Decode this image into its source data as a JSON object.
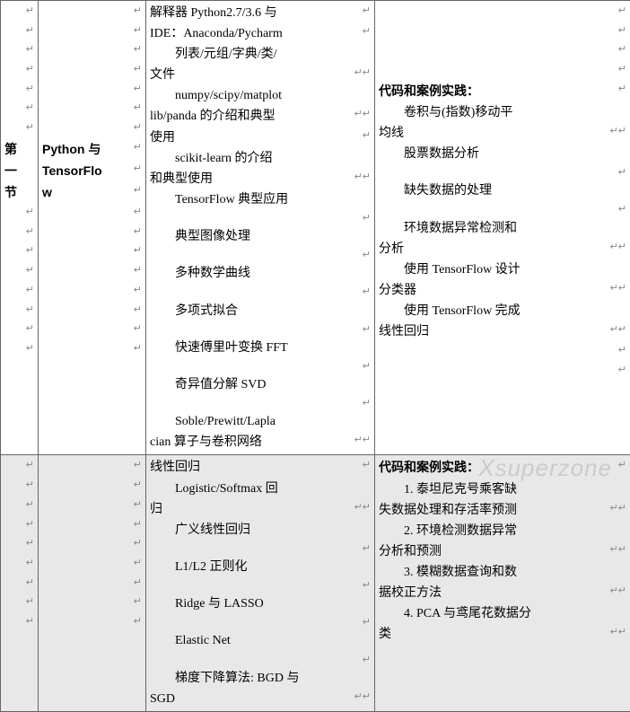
{
  "pmark": "↵",
  "row1": {
    "section_label": "第一节",
    "pad_marks_col0_before": 7,
    "pad_marks_col0_after": 8,
    "col1_pad_before": 7,
    "col1_line1": "Python 与",
    "col1_line2": "TensorFlo",
    "col1_line3": "w",
    "col1_pad_after": 8,
    "col2": [
      {
        "t": "解释器 Python2.7/3.6 与",
        "cls": ""
      },
      {
        "t": "IDE：Anaconda/Pycharm",
        "cls": ""
      },
      {
        "t": "列表/元组/字典/类/",
        "cls": "indent"
      },
      {
        "t": "文件",
        "cls": ""
      },
      {
        "t": "numpy/scipy/matplot",
        "cls": "indent"
      },
      {
        "t": "lib/panda 的介绍和典型",
        "cls": ""
      },
      {
        "t": "使用",
        "cls": ""
      },
      {
        "t": "scikit-learn 的介绍",
        "cls": "indent"
      },
      {
        "t": "和典型使用",
        "cls": ""
      },
      {
        "t": "TensorFlow 典型应用",
        "cls": "indent"
      },
      {
        "t": "典型图像处理",
        "cls": "indent"
      },
      {
        "t": "多种数学曲线",
        "cls": "indent"
      },
      {
        "t": "多项式拟合",
        "cls": "indent"
      },
      {
        "t": "快速傅里叶变换 FFT",
        "cls": "indent"
      },
      {
        "t": "奇异值分解 SVD",
        "cls": "indent"
      },
      {
        "t": "Soble/Prewitt/Lapla",
        "cls": "indent"
      },
      {
        "t": "cian 算子与卷积网络",
        "cls": ""
      }
    ],
    "col3_pad_before": 4,
    "col3": [
      {
        "t": "代码和案例实践：",
        "cls": "bold"
      },
      {
        "t": "卷积与(指数)移动平",
        "cls": "indent"
      },
      {
        "t": "均线",
        "cls": ""
      },
      {
        "t": "股票数据分析",
        "cls": "indent"
      },
      {
        "t": "缺失数据的处理",
        "cls": "indent"
      },
      {
        "t": "环境数据异常检测和",
        "cls": "indent"
      },
      {
        "t": "分析",
        "cls": ""
      },
      {
        "t": "使用 TensorFlow 设计",
        "cls": "indent"
      },
      {
        "t": "分类器",
        "cls": ""
      },
      {
        "t": "使用 TensorFlow 完成",
        "cls": "indent"
      },
      {
        "t": "线性回归",
        "cls": ""
      }
    ],
    "col3_pad_after": 2
  },
  "row2": {
    "col0_marks": 9,
    "col1_marks": 9,
    "col2": [
      {
        "t": "线性回归",
        "cls": ""
      },
      {
        "t": "Logistic/Softmax 回",
        "cls": "indent"
      },
      {
        "t": "归",
        "cls": ""
      },
      {
        "t": "广义线性回归",
        "cls": "indent"
      },
      {
        "t": "L1/L2 正则化",
        "cls": "indent"
      },
      {
        "t": "Ridge 与 LASSO",
        "cls": "indent"
      },
      {
        "t": "Elastic Net",
        "cls": "indent"
      },
      {
        "t": "梯度下降算法: BGD 与",
        "cls": "indent"
      },
      {
        "t": "SGD",
        "cls": ""
      }
    ],
    "col3": [
      {
        "t": "代码和案例实践：",
        "cls": "bold"
      },
      {
        "t": "1. 泰坦尼克号乘客缺",
        "cls": "indent"
      },
      {
        "t": "失数据处理和存活率预测",
        "cls": ""
      },
      {
        "t": "2. 环境检测数据异常",
        "cls": "indent"
      },
      {
        "t": "分析和预测",
        "cls": ""
      },
      {
        "t": "3. 模糊数据查询和数",
        "cls": "indent"
      },
      {
        "t": "据校正方法",
        "cls": ""
      },
      {
        "t": "4. PCA 与鸢尾花数据分",
        "cls": "indent"
      },
      {
        "t": "类",
        "cls": ""
      }
    ]
  },
  "watermark": "Xsuperzone"
}
